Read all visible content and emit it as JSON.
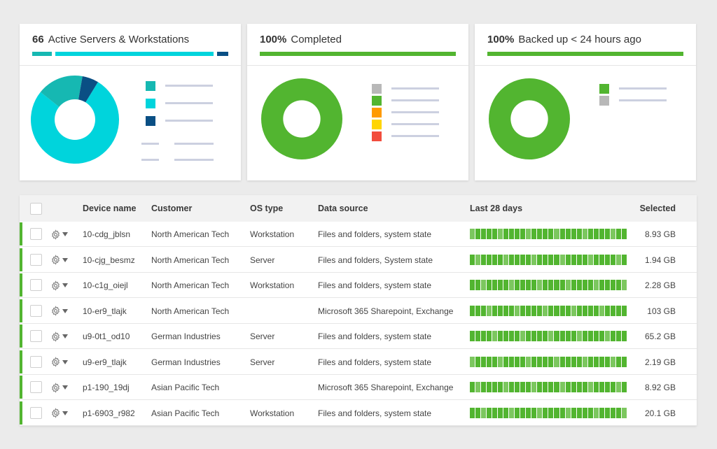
{
  "cards": [
    {
      "count": "66",
      "title": "Active Servers & Workstations",
      "bar_colors": [
        "#16b8b2",
        "#00d4dc",
        "#0a4f84"
      ],
      "donut_colors": [
        "#00d4dc",
        "#16b8b2",
        "#0a4f84"
      ],
      "donut_fractions": [
        0.77,
        0.17,
        0.06
      ],
      "legend_colors": [
        "#16b8b2",
        "#00d4dc",
        "#0a4f84"
      ]
    },
    {
      "count": "100%",
      "title": "Completed",
      "bar_colors": [
        "#52b530"
      ],
      "donut_colors": [
        "#52b530"
      ],
      "donut_fractions": [
        1.0
      ],
      "legend_colors": [
        "#b8b8b8",
        "#52b530",
        "#ff9a00",
        "#ffd500",
        "#f24d3d"
      ]
    },
    {
      "count": "100%",
      "title": "Backed up < 24 hours ago",
      "bar_colors": [
        "#52b530"
      ],
      "donut_colors": [
        "#52b530"
      ],
      "donut_fractions": [
        1.0
      ],
      "legend_colors": [
        "#52b530",
        "#b8b8b8"
      ]
    }
  ],
  "table": {
    "headers": {
      "device": "Device name",
      "customer": "Customer",
      "os": "OS type",
      "source": "Data source",
      "history": "Last 28 days",
      "selected": "Selected"
    },
    "rows": [
      {
        "device": "10-cdg_jblsn",
        "customer": "North American Tech",
        "os": "Workstation",
        "source": "Files and folders, system state",
        "selected": "8.93 GB"
      },
      {
        "device": "10-cjg_besmz",
        "customer": "North American Tech",
        "os": "Server",
        "source": "Files and folders, System state",
        "selected": "1.94 GB"
      },
      {
        "device": "10-c1g_oiejl",
        "customer": "North American Tech",
        "os": "Workstation",
        "source": "Files and folders, system state",
        "selected": "2.28 GB"
      },
      {
        "device": "10-er9_tlajk",
        "customer": "North American Tech",
        "os": "",
        "source": "Microsoft 365 Sharepoint, Exchange",
        "selected": "103 GB"
      },
      {
        "device": "u9-0t1_od10",
        "customer": "German Industries",
        "os": "Server",
        "source": "Files and folders, system state",
        "selected": "65.2 GB"
      },
      {
        "device": "u9-er9_tlajk",
        "customer": "German Industries",
        "os": "Server",
        "source": "Files and folders, system state",
        "selected": "2.19 GB"
      },
      {
        "device": "p1-190_19dj",
        "customer": "Asian Pacific Tech",
        "os": "",
        "source": "Microsoft 365 Sharepoint, Exchange",
        "selected": "8.92 GB"
      },
      {
        "device": "p1-6903_r982",
        "customer": "Asian Pacific Tech",
        "os": "Workstation",
        "source": "Files and folders, system state",
        "selected": "20.1 GB"
      }
    ],
    "history_colors": {
      "success": "#52b530",
      "success_light": "#7cc75f"
    },
    "status_color": "#52b530"
  },
  "icons": {
    "row_menu": "gear-icon",
    "row_menu_caret": "caret-down-icon"
  }
}
